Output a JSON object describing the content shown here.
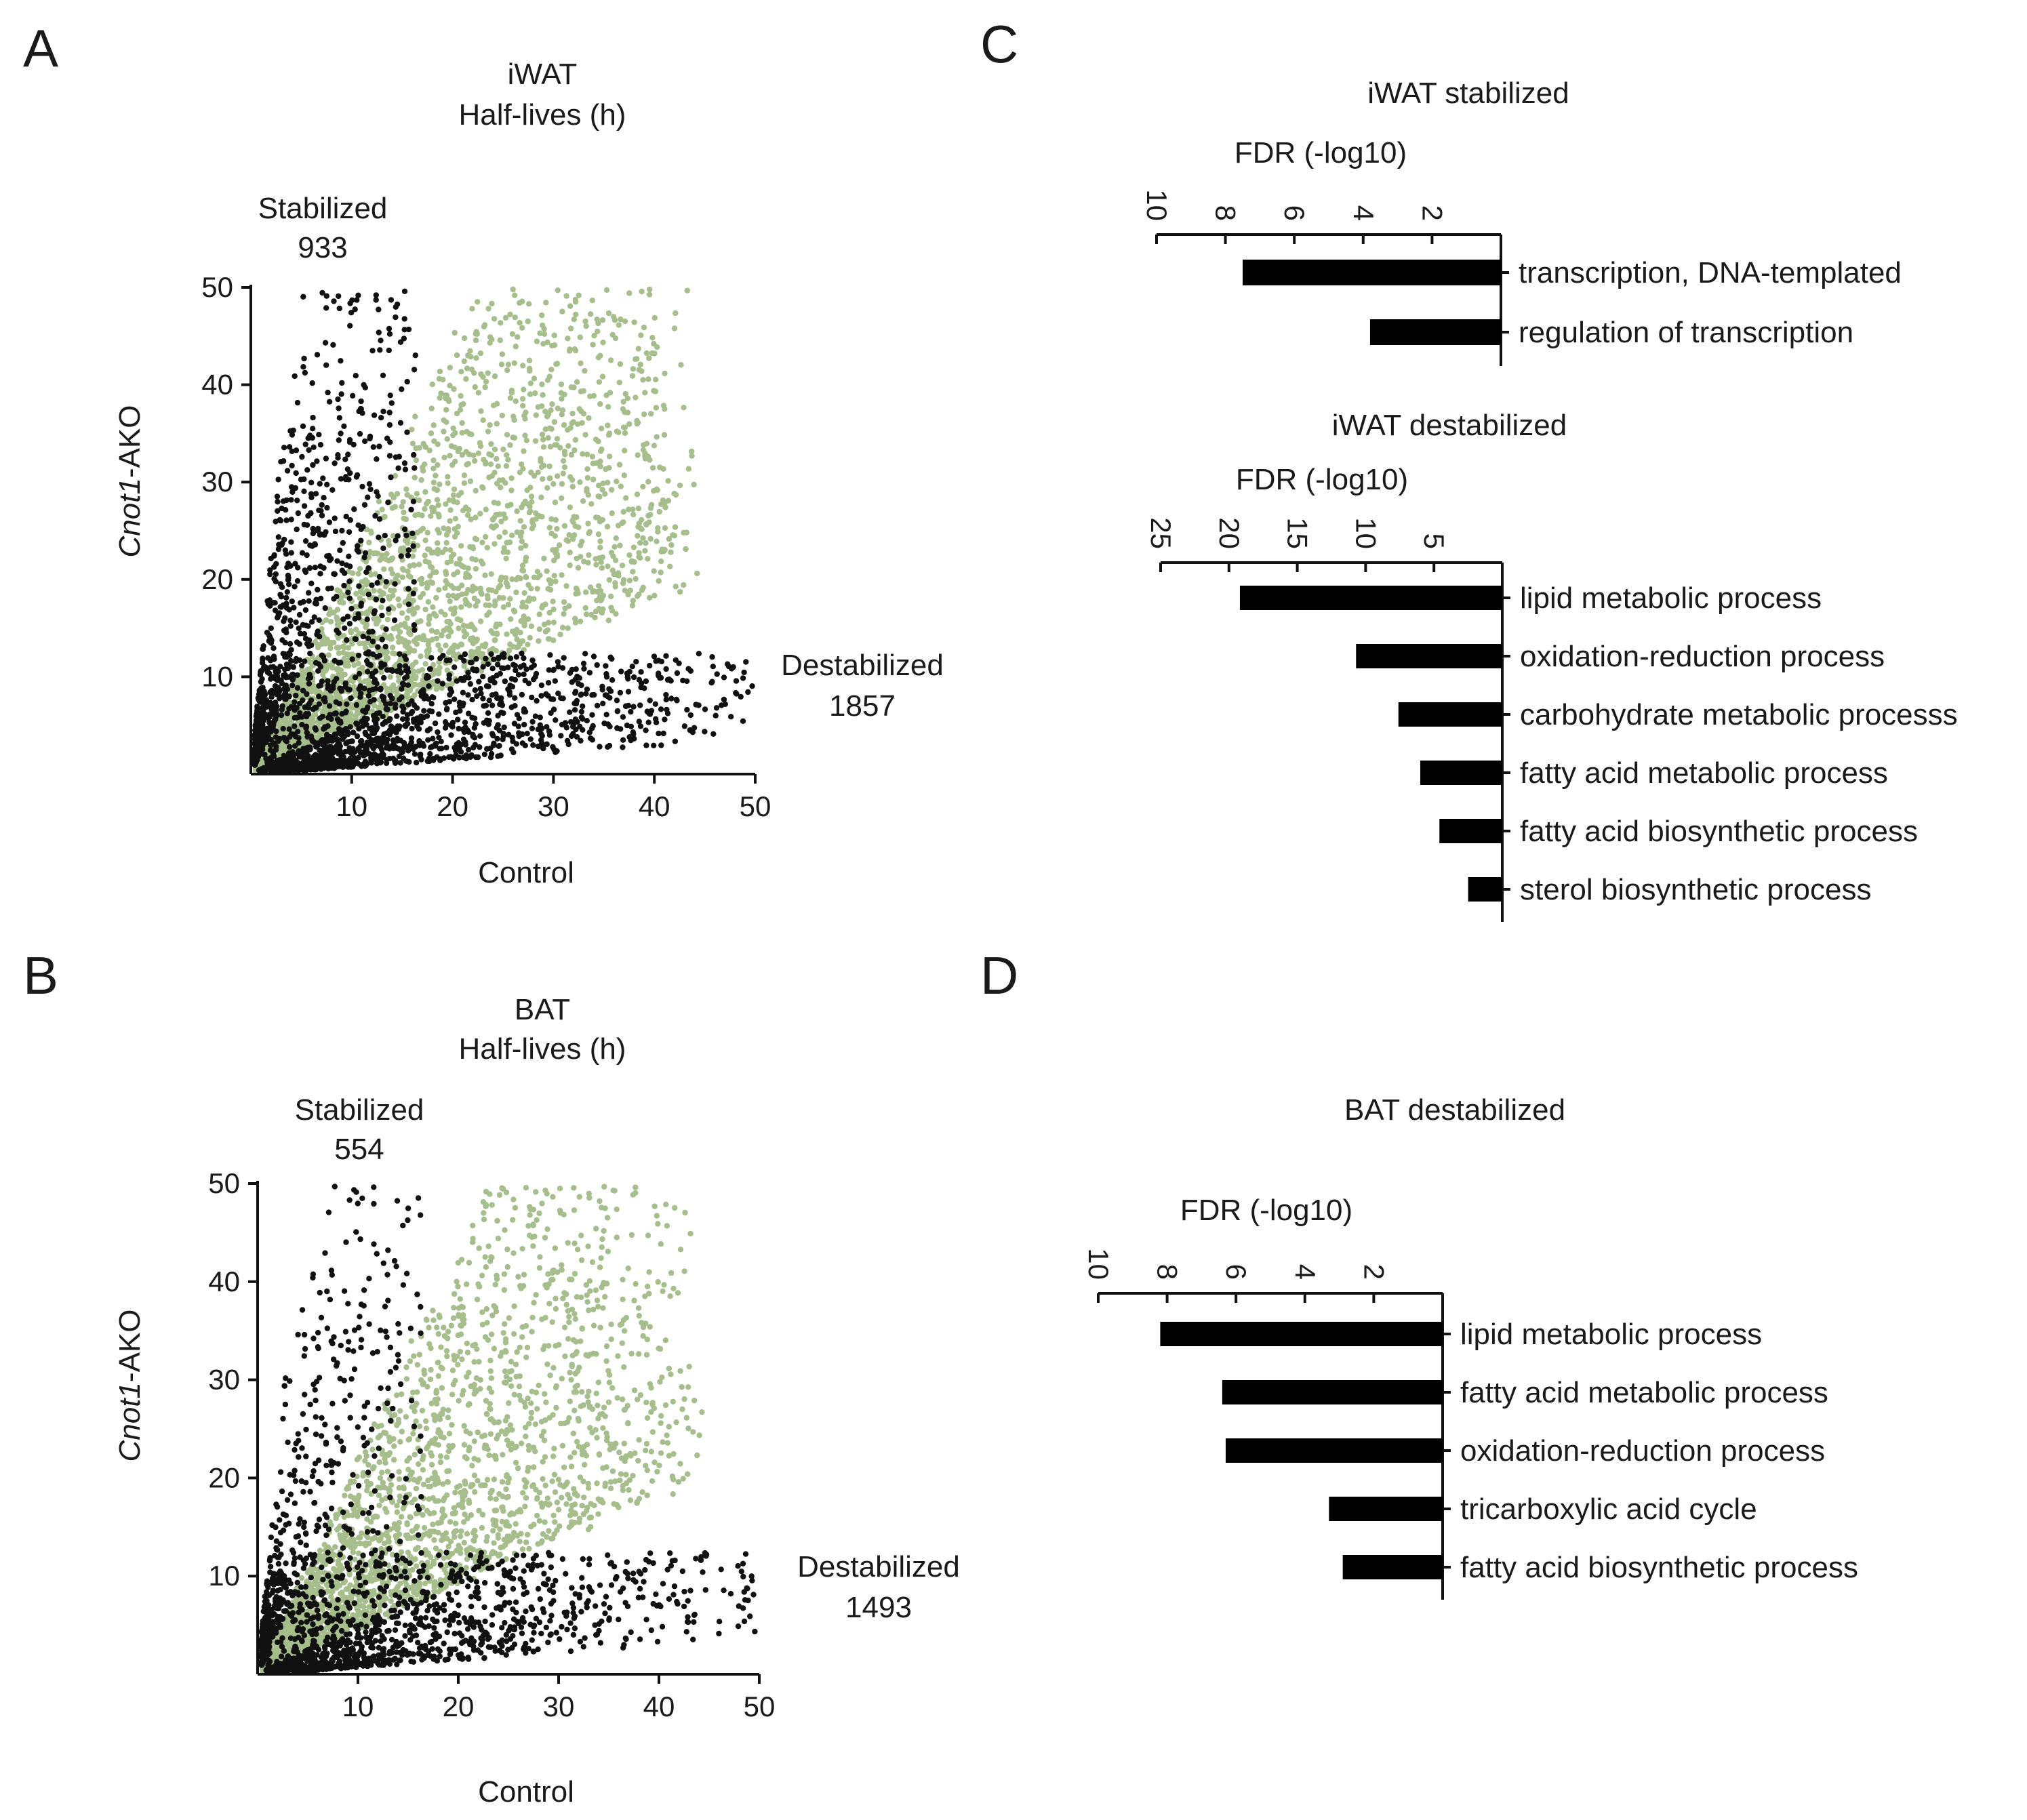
{
  "colors": {
    "stabilized_label": "#ee2a2a",
    "destabilized_label": "#19c9c9",
    "changed_points": "#111111",
    "unchanged_points": "#a6be8c",
    "bars": "#000000"
  },
  "panels": {
    "A": {
      "letter": "A"
    },
    "B": {
      "letter": "B"
    },
    "C": {
      "letter": "C"
    },
    "D": {
      "letter": "D"
    }
  },
  "chart_data": [
    {
      "id": "A",
      "type": "scatter",
      "title": "iWAT",
      "subtitle": "Half-lives (h)",
      "xlabel": "Control",
      "ylabel_italic": "Cnot1",
      "ylabel_rest": "-AKO",
      "xlim": [
        0,
        50
      ],
      "ylim": [
        0,
        50
      ],
      "xticks": [
        10,
        20,
        30,
        40,
        50
      ],
      "yticks": [
        10,
        20,
        30,
        40,
        50
      ],
      "stabilized": {
        "label": "Stabilized",
        "count": "933"
      },
      "destabilized": {
        "label": "Destabilized",
        "count": "1857"
      },
      "point_groups": [
        "stabilized (black, above upper diagonal)",
        "unchanged (green, near diagonal)",
        "destabilized (black, below lower diagonal)"
      ]
    },
    {
      "id": "B",
      "type": "scatter",
      "title": "BAT",
      "subtitle": "Half-lives (h)",
      "xlabel": "Control",
      "ylabel_italic": "Cnot1",
      "ylabel_rest": "-AKO",
      "xlim": [
        0,
        50
      ],
      "ylim": [
        0,
        50
      ],
      "xticks": [
        10,
        20,
        30,
        40,
        50
      ],
      "yticks": [
        10,
        20,
        30,
        40,
        50
      ],
      "stabilized": {
        "label": "Stabilized",
        "count": "554"
      },
      "destabilized": {
        "label": "Destabilized",
        "count": "1493"
      },
      "point_groups": [
        "stabilized (black, above upper diagonal)",
        "unchanged (green, near diagonal)",
        "destabilized (black, below lower diagonal)"
      ]
    },
    {
      "id": "C1",
      "type": "bar",
      "orientation": "horizontal-left",
      "title": "iWAT stabilized",
      "xlabel": "FDR (-log10)",
      "xlim": [
        0,
        10
      ],
      "xticks": [
        10,
        8,
        6,
        4,
        2
      ],
      "categories": [
        "transcription, DNA-templated",
        "regulation of transcription"
      ],
      "values": [
        7.5,
        3.8
      ]
    },
    {
      "id": "C2",
      "type": "bar",
      "orientation": "horizontal-left",
      "title": "iWAT destabilized",
      "xlabel": "FDR (-log10)",
      "xlim": [
        0,
        25
      ],
      "xticks": [
        25,
        20,
        15,
        10,
        5
      ],
      "categories": [
        "lipid metabolic process",
        "oxidation-reduction process",
        "carbohydrate metabolic processs",
        "fatty acid metabolic process",
        "fatty acid biosynthetic process",
        "sterol biosynthetic process"
      ],
      "values": [
        19.2,
        10.7,
        7.6,
        6.0,
        4.6,
        2.5
      ]
    },
    {
      "id": "D",
      "type": "bar",
      "orientation": "horizontal-left",
      "title": "BAT destabilized",
      "xlabel": "FDR (-log10)",
      "xlim": [
        0,
        10
      ],
      "xticks": [
        10,
        8,
        6,
        4,
        2
      ],
      "categories": [
        "lipid metabolic process",
        "fatty acid metabolic process",
        "oxidation-reduction process",
        "tricarboxylic acid cycle",
        "fatty acid biosynthetic process"
      ],
      "values": [
        8.2,
        6.4,
        6.3,
        3.3,
        2.9
      ]
    }
  ]
}
